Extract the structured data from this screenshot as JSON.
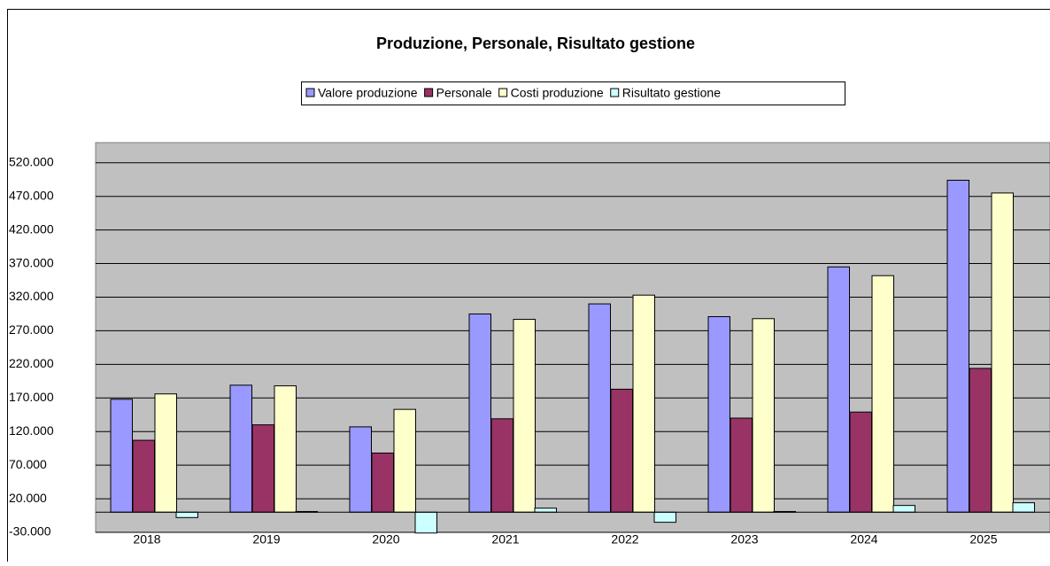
{
  "chart_data": {
    "type": "bar",
    "title": "Produzione, Personale, Risultato gestione",
    "categories": [
      "2018",
      "2019",
      "2020",
      "2021",
      "2022",
      "2023",
      "2024",
      "2025"
    ],
    "series": [
      {
        "name": "Valore produzione",
        "color": "#9999ff",
        "values": [
          168000,
          189000,
          127000,
          295000,
          310000,
          291000,
          365000,
          494000
        ]
      },
      {
        "name": "Personale",
        "color": "#993366",
        "values": [
          107000,
          130000,
          88000,
          139000,
          183000,
          140000,
          149000,
          214000
        ]
      },
      {
        "name": "Costi produzione",
        "color": "#ffffcc",
        "values": [
          176000,
          188000,
          153000,
          287000,
          323000,
          288000,
          352000,
          475000
        ]
      },
      {
        "name": "Risultato gestione",
        "color": "#ccffff",
        "values": [
          -8000,
          1000,
          -31000,
          6000,
          -15000,
          1000,
          10000,
          14000
        ]
      }
    ],
    "ylim": [
      -30000,
      550000
    ],
    "yticks": [
      {
        "value": -30000,
        "label": "-30.000"
      },
      {
        "value": 20000,
        "label": "20.000"
      },
      {
        "value": 70000,
        "label": "70.000"
      },
      {
        "value": 120000,
        "label": "120.000"
      },
      {
        "value": 170000,
        "label": "170.000"
      },
      {
        "value": 220000,
        "label": "220.000"
      },
      {
        "value": 270000,
        "label": "270.000"
      },
      {
        "value": 320000,
        "label": "320.000"
      },
      {
        "value": 370000,
        "label": "370.000"
      },
      {
        "value": 420000,
        "label": "420.000"
      },
      {
        "value": 470000,
        "label": "470.000"
      },
      {
        "value": 520000,
        "label": "520.000"
      }
    ],
    "grid": true,
    "legend": "top"
  }
}
